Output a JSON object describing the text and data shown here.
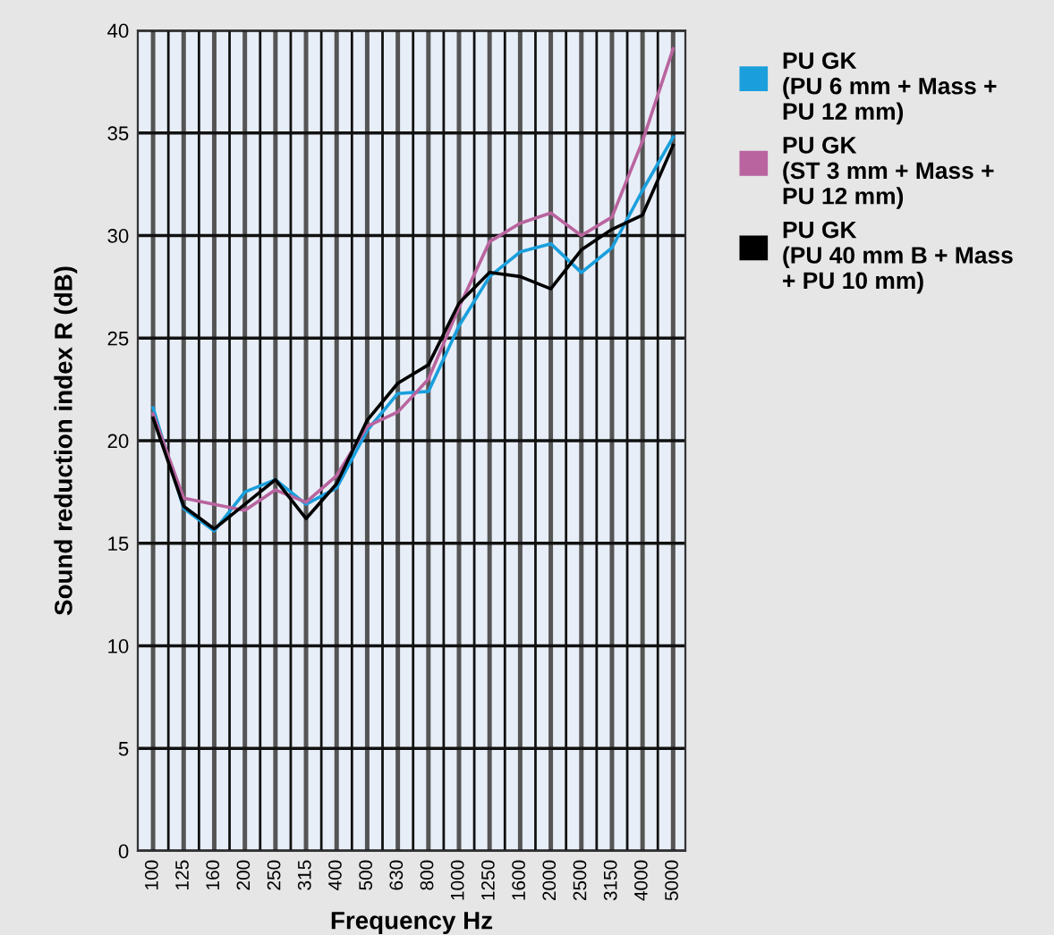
{
  "chart_data": {
    "type": "line",
    "xlabel": "Frequency Hz",
    "ylabel": "Sound reduction index R (dB)",
    "categories": [
      "100",
      "125",
      "160",
      "200",
      "250",
      "315",
      "400",
      "500",
      "630",
      "800",
      "1000",
      "1250",
      "1600",
      "2000",
      "2500",
      "3150",
      "4000",
      "5000"
    ],
    "series": [
      {
        "name": "PU GK\n(PU 6 mm + Mass +\nPU 12 mm)",
        "color": "#1a9fdc",
        "values": [
          21.6,
          16.7,
          15.6,
          17.5,
          18.1,
          16.9,
          17.7,
          20.5,
          22.3,
          22.4,
          25.6,
          28.0,
          29.2,
          29.6,
          28.2,
          29.4,
          32.2,
          34.8
        ]
      },
      {
        "name": "PU GK\n(ST 3 mm + Mass +\nPU 12 mm)",
        "color": "#b9649f",
        "values": [
          21.3,
          17.2,
          16.9,
          16.6,
          17.6,
          17.0,
          18.3,
          20.7,
          21.4,
          23.0,
          26.5,
          29.7,
          30.6,
          31.1,
          30.0,
          30.9,
          34.6,
          39.1
        ]
      },
      {
        "name": "PU GK\n(PU 40 mm B + Mass\n+ PU 10 mm)",
        "color": "#000000",
        "values": [
          21.1,
          16.8,
          15.7,
          16.9,
          18.1,
          16.2,
          17.9,
          21.0,
          22.8,
          23.7,
          26.7,
          28.2,
          28.0,
          27.4,
          29.3,
          30.3,
          31.0,
          34.4
        ]
      }
    ],
    "ylim": [
      0,
      40
    ],
    "yticks": [
      0,
      5,
      10,
      15,
      20,
      25,
      30,
      35,
      40
    ],
    "grid": true,
    "legend": "top right",
    "marker": "none",
    "line_style": "solid"
  }
}
